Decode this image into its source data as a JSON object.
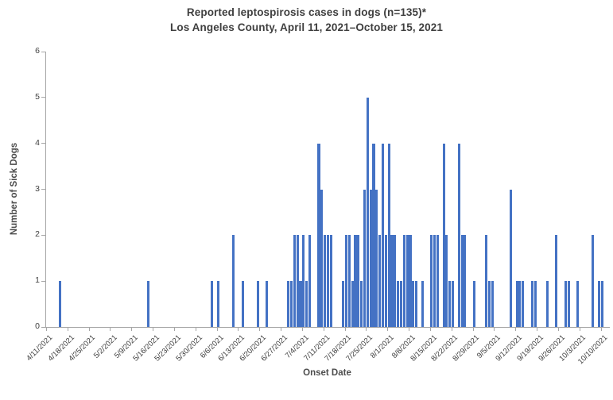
{
  "chart_data": {
    "type": "bar",
    "title_line1": "Reported leptospirosis cases in dogs (n=135)*",
    "title_line2": "Los Angeles County, April 11, 2021–October 15, 2021",
    "xlabel": "Onset Date",
    "ylabel": "Number of Sick Dogs",
    "ylim": [
      0,
      6
    ],
    "y_ticks": [
      0,
      1,
      2,
      3,
      4,
      5,
      6
    ],
    "grid": "off",
    "legend": "none",
    "bar_color": "#4472C4",
    "axis_color": "#a6a6a6",
    "text_color": "#404040",
    "axis_start_date": "4/11/2021",
    "num_days": 185,
    "x_tick_labels": [
      "4/11/2021",
      "4/18/2021",
      "4/25/2021",
      "5/2/2021",
      "5/9/2021",
      "5/16/2021",
      "5/23/2021",
      "5/30/2021",
      "6/6/2021",
      "6/13/2021",
      "6/20/2021",
      "6/27/2021",
      "7/4/2021",
      "7/11/2021",
      "7/18/2021",
      "7/25/2021",
      "8/1/2021",
      "8/8/2021",
      "8/15/2021",
      "8/22/2021",
      "8/29/2021",
      "9/5/2021",
      "9/12/2021",
      "9/19/2021",
      "9/26/2021",
      "10/3/2021",
      "10/10/2021"
    ],
    "points": [
      {
        "date": "4/15/2021",
        "count": 1
      },
      {
        "date": "5/14/2021",
        "count": 1
      },
      {
        "date": "6/4/2021",
        "count": 1
      },
      {
        "date": "6/6/2021",
        "count": 1
      },
      {
        "date": "6/11/2021",
        "count": 2
      },
      {
        "date": "6/14/2021",
        "count": 1
      },
      {
        "date": "6/19/2021",
        "count": 1
      },
      {
        "date": "6/22/2021",
        "count": 1
      },
      {
        "date": "6/29/2021",
        "count": 1
      },
      {
        "date": "6/30/2021",
        "count": 1
      },
      {
        "date": "7/1/2021",
        "count": 2
      },
      {
        "date": "7/2/2021",
        "count": 2
      },
      {
        "date": "7/3/2021",
        "count": 1
      },
      {
        "date": "7/4/2021",
        "count": 2
      },
      {
        "date": "7/5/2021",
        "count": 1
      },
      {
        "date": "7/6/2021",
        "count": 2
      },
      {
        "date": "7/9/2021",
        "count": 4
      },
      {
        "date": "7/10/2021",
        "count": 3
      },
      {
        "date": "7/11/2021",
        "count": 2
      },
      {
        "date": "7/12/2021",
        "count": 2
      },
      {
        "date": "7/13/2021",
        "count": 2
      },
      {
        "date": "7/17/2021",
        "count": 1
      },
      {
        "date": "7/18/2021",
        "count": 2
      },
      {
        "date": "7/19/2021",
        "count": 2
      },
      {
        "date": "7/20/2021",
        "count": 1
      },
      {
        "date": "7/21/2021",
        "count": 2
      },
      {
        "date": "7/22/2021",
        "count": 2
      },
      {
        "date": "7/23/2021",
        "count": 1
      },
      {
        "date": "7/24/2021",
        "count": 3
      },
      {
        "date": "7/25/2021",
        "count": 5
      },
      {
        "date": "7/26/2021",
        "count": 3
      },
      {
        "date": "7/27/2021",
        "count": 4
      },
      {
        "date": "7/28/2021",
        "count": 3
      },
      {
        "date": "7/29/2021",
        "count": 2
      },
      {
        "date": "7/30/2021",
        "count": 4
      },
      {
        "date": "7/31/2021",
        "count": 2
      },
      {
        "date": "8/1/2021",
        "count": 4
      },
      {
        "date": "8/2/2021",
        "count": 2
      },
      {
        "date": "8/3/2021",
        "count": 2
      },
      {
        "date": "8/4/2021",
        "count": 1
      },
      {
        "date": "8/5/2021",
        "count": 1
      },
      {
        "date": "8/6/2021",
        "count": 2
      },
      {
        "date": "8/7/2021",
        "count": 2
      },
      {
        "date": "8/8/2021",
        "count": 2
      },
      {
        "date": "8/9/2021",
        "count": 1
      },
      {
        "date": "8/10/2021",
        "count": 1
      },
      {
        "date": "8/12/2021",
        "count": 1
      },
      {
        "date": "8/15/2021",
        "count": 2
      },
      {
        "date": "8/16/2021",
        "count": 2
      },
      {
        "date": "8/17/2021",
        "count": 2
      },
      {
        "date": "8/19/2021",
        "count": 4
      },
      {
        "date": "8/20/2021",
        "count": 2
      },
      {
        "date": "8/21/2021",
        "count": 1
      },
      {
        "date": "8/22/2021",
        "count": 1
      },
      {
        "date": "8/24/2021",
        "count": 4
      },
      {
        "date": "8/25/2021",
        "count": 2
      },
      {
        "date": "8/26/2021",
        "count": 2
      },
      {
        "date": "8/29/2021",
        "count": 1
      },
      {
        "date": "9/2/2021",
        "count": 2
      },
      {
        "date": "9/3/2021",
        "count": 1
      },
      {
        "date": "9/4/2021",
        "count": 1
      },
      {
        "date": "9/10/2021",
        "count": 3
      },
      {
        "date": "9/12/2021",
        "count": 1
      },
      {
        "date": "9/13/2021",
        "count": 1
      },
      {
        "date": "9/14/2021",
        "count": 1
      },
      {
        "date": "9/17/2021",
        "count": 1
      },
      {
        "date": "9/18/2021",
        "count": 1
      },
      {
        "date": "9/22/2021",
        "count": 1
      },
      {
        "date": "9/25/2021",
        "count": 2
      },
      {
        "date": "9/28/2021",
        "count": 1
      },
      {
        "date": "9/29/2021",
        "count": 1
      },
      {
        "date": "10/2/2021",
        "count": 1
      },
      {
        "date": "10/7/2021",
        "count": 2
      },
      {
        "date": "10/9/2021",
        "count": 1
      },
      {
        "date": "10/10/2021",
        "count": 1
      }
    ]
  }
}
